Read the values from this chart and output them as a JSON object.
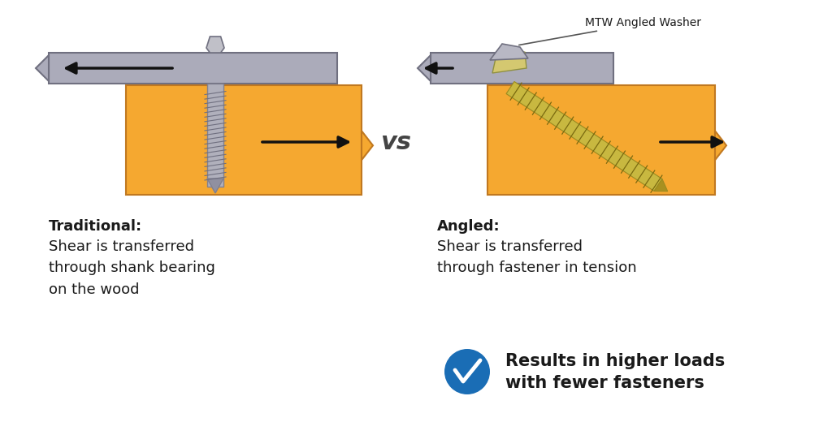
{
  "bg_color": "#ffffff",
  "wood_color": "#F5A830",
  "wood_edge": "#C07820",
  "plate_color": "#ABABBA",
  "plate_edge": "#707080",
  "screw_gray": "#B0B0BC",
  "screw_gray_edge": "#808090",
  "screw_gold": "#C8B840",
  "screw_gold_edge": "#9A8A20",
  "text_color": "#1a1a1a",
  "arrow_color": "#111111",
  "vs_color": "#444444",
  "check_color": "#1a6db5",
  "vs_text": "vs",
  "label_trad_bold": "Traditional:",
  "label_trad_body": "Shear is transferred\nthrough shank bearing\non the wood",
  "label_angled_bold": "Angled:",
  "label_angled_body": "Shear is transferred\nthrough fastener in tension",
  "label_result": "Results in higher loads\nwith fewer fasteners",
  "label_washer": "MTW Angled Washer"
}
